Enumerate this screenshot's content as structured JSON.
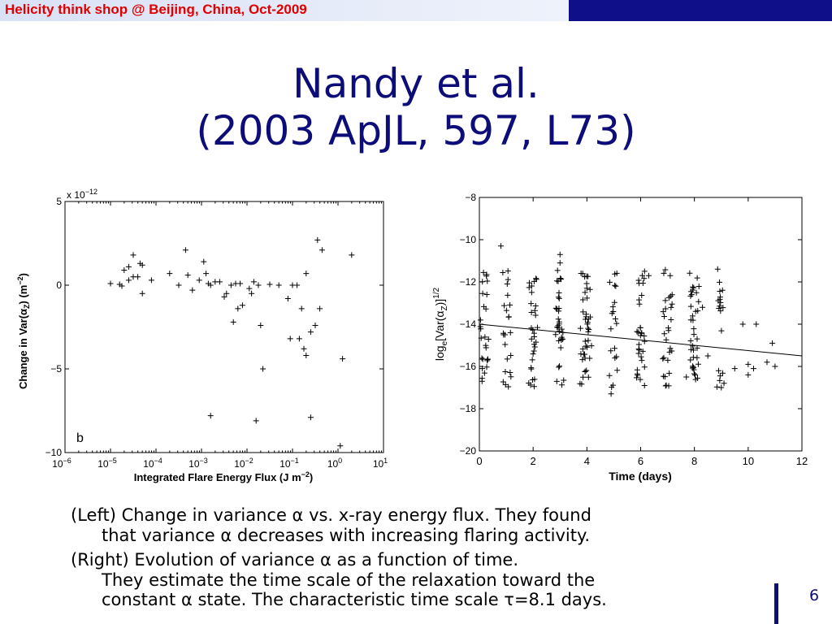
{
  "header": {
    "text": "Helicity think shop @ Beijing, China,  Oct-2009",
    "left_color": "#dde4f5",
    "right_color": "#0f0f8a",
    "text_color": "#e00000"
  },
  "title": {
    "line1": "Nandy et al.",
    "line2": "(2003 ApJL, 597, L73)",
    "color": "#0d0d7a"
  },
  "chart_data": [
    {
      "type": "scatter",
      "xscale": "log",
      "xlim": [
        1e-06,
        10
      ],
      "ylim": [
        -10,
        5
      ],
      "y_multiplier_label": "x 10",
      "y_multiplier_exp": "−12",
      "panel_label": "b",
      "ylabel": "Change in Var(αZ) (m−2)",
      "ylabel_parts": {
        "a": "Change in Var(",
        "b": "α",
        "c": "Z",
        "d": ") (m",
        "e": "−2",
        "f": ")"
      },
      "xlabel": "Integrated Flare Energy Flux (J m−2)",
      "xlabel_parts": {
        "a": "Integrated Flare Energy Flux (J m",
        "b": "−2",
        "c": ")"
      },
      "x_ticks": [
        {
          "v": -6,
          "e": "−6"
        },
        {
          "v": -5,
          "e": "−5"
        },
        {
          "v": -4,
          "e": "−4"
        },
        {
          "v": -3,
          "e": "−3"
        },
        {
          "v": -2,
          "e": "−2"
        },
        {
          "v": -1,
          "e": "−1"
        },
        {
          "v": 0,
          "e": "0"
        },
        {
          "v": 1,
          "e": "1"
        }
      ],
      "x_tick_base": "10",
      "y_ticks": [
        {
          "v": 5,
          "label": "5"
        },
        {
          "v": 0,
          "label": "0"
        },
        {
          "v": -5,
          "label": "−5"
        },
        {
          "v": -10,
          "label": "−10"
        }
      ],
      "points": [
        [
          -5.0,
          0.1
        ],
        [
          -4.8,
          0.05
        ],
        [
          -4.75,
          -0.05
        ],
        [
          -4.6,
          0.3
        ],
        [
          -4.7,
          0.9
        ],
        [
          -4.6,
          1.1
        ],
        [
          -4.5,
          1.8
        ],
        [
          -4.5,
          0.5
        ],
        [
          -4.35,
          1.3
        ],
        [
          -4.4,
          0.5
        ],
        [
          -4.3,
          1.2
        ],
        [
          -4.3,
          -0.5
        ],
        [
          -4.1,
          0.3
        ],
        [
          -3.7,
          0.7
        ],
        [
          -3.5,
          0.0
        ],
        [
          -3.35,
          2.1
        ],
        [
          -3.3,
          0.6
        ],
        [
          -3.2,
          -0.3
        ],
        [
          -3.05,
          0.3
        ],
        [
          -2.95,
          1.4
        ],
        [
          -2.9,
          0.7
        ],
        [
          -2.85,
          0.1
        ],
        [
          -2.8,
          0.0
        ],
        [
          -2.7,
          0.2
        ],
        [
          -2.6,
          0.2
        ],
        [
          -2.5,
          -0.7
        ],
        [
          -2.45,
          -0.5
        ],
        [
          -2.35,
          0.0
        ],
        [
          -2.3,
          -2.2
        ],
        [
          -2.25,
          0.1
        ],
        [
          -2.2,
          -1.4
        ],
        [
          -2.15,
          0.1
        ],
        [
          -2.1,
          -1.2
        ],
        [
          -1.95,
          -0.2
        ],
        [
          -1.9,
          -0.5
        ],
        [
          -1.85,
          0.2
        ],
        [
          -1.75,
          0.0
        ],
        [
          -1.7,
          -2.4
        ],
        [
          -1.65,
          -5.0
        ],
        [
          -1.5,
          0.05
        ],
        [
          -1.3,
          0.0
        ],
        [
          -1.1,
          -0.8
        ],
        [
          -1.05,
          -3.2
        ],
        [
          -1.0,
          0.0
        ],
        [
          -0.9,
          0.0
        ],
        [
          -0.85,
          -3.2
        ],
        [
          -0.8,
          -1.4
        ],
        [
          -0.75,
          -3.8
        ],
        [
          -0.7,
          -4.2
        ],
        [
          -0.7,
          0.7
        ],
        [
          -0.6,
          -2.8
        ],
        [
          -0.5,
          -2.4
        ],
        [
          -0.45,
          2.7
        ],
        [
          -0.4,
          -1.4
        ],
        [
          -0.35,
          2.1
        ],
        [
          -2.8,
          -7.8
        ],
        [
          -1.8,
          -8.1
        ],
        [
          -0.6,
          -7.9
        ],
        [
          0.1,
          -4.4
        ],
        [
          0.3,
          1.8
        ],
        [
          0.05,
          -9.6
        ]
      ]
    },
    {
      "type": "scatter",
      "xlim": [
        0,
        12
      ],
      "ylim": [
        -20,
        -8
      ],
      "xlabel": "Time (days)",
      "ylabel": "loge[Var(αZ)]1/2",
      "ylabel_parts": {
        "a": "log",
        "b": "e",
        "c": "[Var(",
        "d": "α",
        "e": "Z",
        "f": ")]",
        "g": "1/2"
      },
      "x_ticks": [
        0,
        2,
        4,
        6,
        8,
        10,
        12
      ],
      "y_ticks": [
        {
          "v": -8,
          "label": "−8"
        },
        {
          "v": -10,
          "label": "−10"
        },
        {
          "v": -12,
          "label": "−12"
        },
        {
          "v": -14,
          "label": "−14"
        },
        {
          "v": -16,
          "label": "−16"
        },
        {
          "v": -18,
          "label": "−18"
        },
        {
          "v": -20,
          "label": "−20"
        }
      ],
      "fit_line": {
        "x": [
          0,
          12
        ],
        "y": [
          -14.0,
          -15.5
        ]
      },
      "column_days": [
        0.1,
        0.2,
        0.3,
        0.9,
        1.0,
        1.1,
        1.9,
        2.0,
        2.1,
        2.9,
        3.0,
        3.1,
        3.8,
        3.9,
        4.0,
        4.1,
        4.9,
        5.0,
        5.1,
        5.9,
        6.0,
        6.1,
        6.9,
        7.0,
        7.1,
        7.9,
        8.0,
        8.1,
        8.9,
        9.0
      ],
      "y_band": [
        -17.0,
        -11.3
      ],
      "extra_points": [
        [
          0.8,
          -10.3
        ],
        [
          3.0,
          -10.7
        ],
        [
          3.0,
          -11.1
        ],
        [
          4.0,
          -12.3
        ],
        [
          6.3,
          -11.7
        ],
        [
          7.1,
          -11.7
        ],
        [
          7.9,
          -12.6
        ],
        [
          8.3,
          -13.2
        ],
        [
          8.9,
          -16.2
        ],
        [
          9.1,
          -16.8
        ],
        [
          9.5,
          -16.1
        ],
        [
          9.8,
          -14.0
        ],
        [
          10.0,
          -15.9
        ],
        [
          10.0,
          -16.4
        ],
        [
          10.3,
          -14.0
        ],
        [
          10.7,
          -15.8
        ],
        [
          10.9,
          -14.9
        ],
        [
          11.0,
          -16.0
        ],
        [
          9.0,
          -17.0
        ],
        [
          8.5,
          -15.5
        ],
        [
          7.7,
          -16.5
        ],
        [
          10.2,
          -16.1
        ],
        [
          0.1,
          -16.7
        ],
        [
          4.9,
          -17.3
        ]
      ]
    }
  ],
  "caption": {
    "p1_line1": "(Left) Change in variance α vs. x-ray energy flux. They found",
    "p1_line2": "that variance α decreases with increasing flaring activity.",
    "p2_line1": "(Right) Evolution of variance α as a function of time.",
    "p2_line2": "They estimate the time scale of the relaxation toward the",
    "p2_line3": "constant α state. The characteristic time scale τ=8.1 days."
  },
  "page_number": "6"
}
